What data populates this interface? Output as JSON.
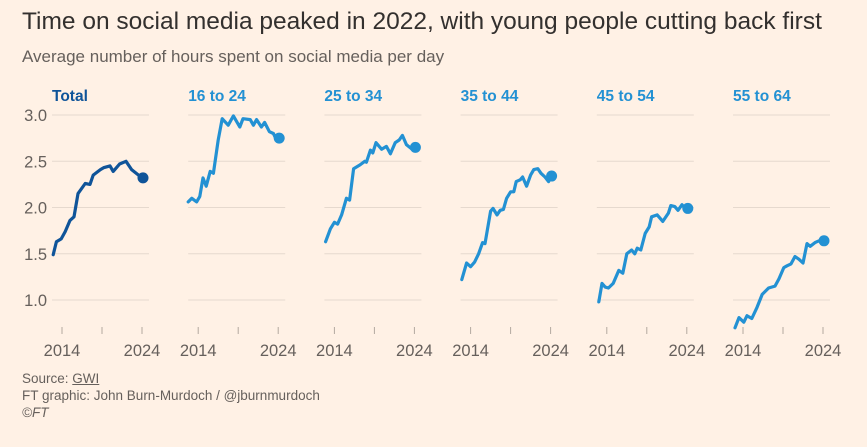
{
  "title": "Time on social media peaked in 2022, with young people cutting back first",
  "subtitle": "Average number of hours spent on social media per day",
  "footer": {
    "source_label": "Source: ",
    "source_link": "GWI",
    "credit": "FT graphic: John Burn-Murdoch / @jburnmurdoch",
    "copyright": "©FT"
  },
  "chart_data": {
    "type": "line",
    "layout": "small-multiples",
    "ylim": [
      0.7,
      3.0
    ],
    "yticks": [
      1.0,
      1.5,
      2.0,
      2.5,
      3.0
    ],
    "ytick_labels": [
      "1.0",
      "1.5",
      "2.0",
      "2.5",
      "3.0"
    ],
    "xticks": [
      2014,
      2019,
      2024
    ],
    "xtick_labels": [
      "2014",
      "",
      "2024"
    ],
    "grid": true,
    "end_marker": "dot",
    "colors": {
      "total": "#0f5499",
      "age_group": "#2391d3",
      "grid": "#e6d9ce",
      "text": "#66605c"
    },
    "series": [
      {
        "name": "Total",
        "color": "#0f5499",
        "x": [
          2012.9,
          2013.3,
          2013.9,
          2014.4,
          2015.0,
          2015.5,
          2016.0,
          2016.9,
          2017.5,
          2017.9,
          2018.8,
          2019.2,
          2020.0,
          2020.4,
          2021.2,
          2022.0,
          2022.7,
          2024.0
        ],
        "y": [
          1.49,
          1.63,
          1.66,
          1.74,
          1.86,
          1.9,
          2.15,
          2.26,
          2.25,
          2.35,
          2.41,
          2.43,
          2.45,
          2.39,
          2.47,
          2.5,
          2.41,
          2.32
        ]
      },
      {
        "name": "16 to 24",
        "color": "#2391d3",
        "x": [
          2012.75,
          2013.2,
          2013.8,
          2014.2,
          2014.6,
          2015.0,
          2015.5,
          2015.9,
          2016.5,
          2017.0,
          2017.75,
          2018.4,
          2019.2,
          2019.6,
          2020.5,
          2020.9,
          2021.3,
          2021.9,
          2022.3,
          2022.9,
          2023.4,
          2023.8,
          2024.0
        ],
        "y": [
          2.06,
          2.1,
          2.06,
          2.12,
          2.32,
          2.23,
          2.39,
          2.37,
          2.73,
          2.96,
          2.89,
          2.99,
          2.87,
          2.96,
          2.95,
          2.89,
          2.95,
          2.87,
          2.92,
          2.82,
          2.8,
          2.73,
          2.75
        ]
      },
      {
        "name": "25 to 34",
        "color": "#2391d3",
        "x": [
          2012.9,
          2013.5,
          2014.0,
          2014.4,
          2014.9,
          2015.5,
          2015.9,
          2016.4,
          2017.2,
          2017.8,
          2018.0,
          2018.5,
          2018.8,
          2019.2,
          2019.9,
          2020.5,
          2021.0,
          2021.6,
          2022.1,
          2022.5,
          2023.0,
          2023.7,
          2024.0
        ],
        "y": [
          1.63,
          1.77,
          1.84,
          1.82,
          1.92,
          2.1,
          2.08,
          2.42,
          2.46,
          2.5,
          2.49,
          2.62,
          2.59,
          2.7,
          2.63,
          2.66,
          2.58,
          2.7,
          2.73,
          2.78,
          2.68,
          2.63,
          2.65
        ]
      },
      {
        "name": "35 to 44",
        "color": "#2391d3",
        "x": [
          2012.9,
          2013.5,
          2014.0,
          2014.5,
          2015.0,
          2015.5,
          2015.8,
          2016.5,
          2016.8,
          2017.3,
          2017.7,
          2018.1,
          2018.5,
          2019.0,
          2019.4,
          2019.7,
          2020.2,
          2020.5,
          2021.0,
          2021.5,
          2021.9,
          2022.4,
          2022.8,
          2023.3,
          2023.75,
          2024.0
        ],
        "y": [
          1.22,
          1.4,
          1.36,
          1.41,
          1.5,
          1.62,
          1.61,
          1.96,
          1.99,
          1.92,
          1.97,
          1.98,
          2.1,
          2.17,
          2.17,
          2.28,
          2.3,
          2.33,
          2.23,
          2.35,
          2.41,
          2.42,
          2.37,
          2.33,
          2.28,
          2.34
        ]
      },
      {
        "name": "45 to 54",
        "color": "#2391d3",
        "x": [
          2013.0,
          2013.4,
          2013.8,
          2014.2,
          2014.8,
          2015.5,
          2016.0,
          2016.5,
          2017.1,
          2017.5,
          2017.8,
          2018.25,
          2018.8,
          2019.3,
          2019.6,
          2020.3,
          2021.0,
          2021.7,
          2022.0,
          2022.5,
          2022.9,
          2023.4,
          2023.8,
          2024.0
        ],
        "y": [
          0.98,
          1.18,
          1.14,
          1.13,
          1.18,
          1.32,
          1.29,
          1.5,
          1.54,
          1.5,
          1.56,
          1.54,
          1.72,
          1.79,
          1.9,
          1.92,
          1.85,
          1.94,
          2.02,
          2.01,
          1.97,
          2.03,
          1.99,
          1.99
        ]
      },
      {
        "name": "55 to 64",
        "color": "#2391d3",
        "x": [
          2013.0,
          2013.5,
          2014.1,
          2014.5,
          2015.1,
          2015.75,
          2016.4,
          2017.2,
          2018.0,
          2018.5,
          2019.1,
          2019.5,
          2020.0,
          2020.5,
          2021.0,
          2021.5,
          2022.0,
          2022.4,
          2023.0,
          2023.5,
          2024.0
        ],
        "y": [
          0.7,
          0.81,
          0.76,
          0.83,
          0.8,
          0.92,
          1.06,
          1.13,
          1.15,
          1.23,
          1.35,
          1.37,
          1.39,
          1.47,
          1.44,
          1.4,
          1.61,
          1.58,
          1.62,
          1.64,
          1.64
        ]
      }
    ]
  }
}
